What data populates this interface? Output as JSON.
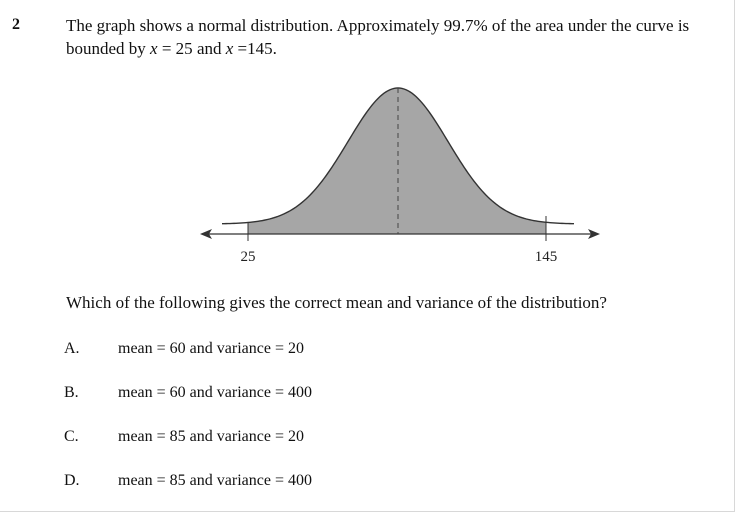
{
  "question": {
    "number": "2",
    "stem_part1": "The graph shows a normal distribution. Approximately 99.7% of the area under the curve is bounded by ",
    "var_x": "x",
    "eq1": " = 25",
    "and": " and ",
    "eq2": " =145.",
    "prompt": "Which of the following gives the correct mean and variance of the distribution?"
  },
  "graph": {
    "lower_label": "25",
    "upper_label": "145",
    "shade_color": "#a6a6a6"
  },
  "options": [
    {
      "letter": "A.",
      "text": "mean = 60 and variance = 20"
    },
    {
      "letter": "B.",
      "text": "mean = 60 and variance = 400"
    },
    {
      "letter": "C.",
      "text": "mean = 85 and variance = 20"
    },
    {
      "letter": "D.",
      "text": "mean = 85 and variance = 400"
    }
  ]
}
